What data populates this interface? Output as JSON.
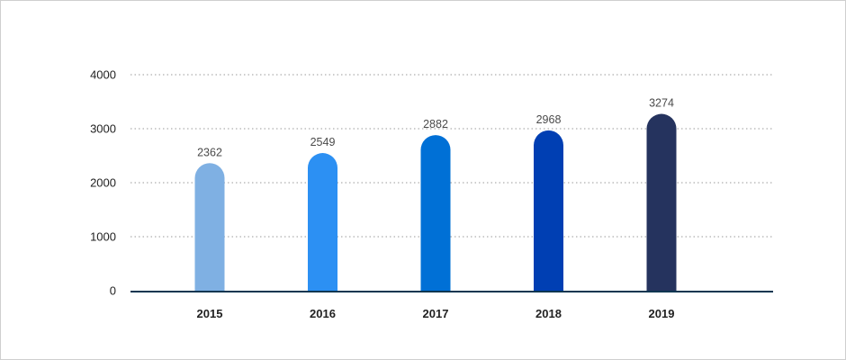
{
  "chart_data": {
    "type": "bar",
    "categories": [
      "2015",
      "2016",
      "2017",
      "2018",
      "2019"
    ],
    "values": [
      2362,
      2549,
      2882,
      2968,
      3274
    ],
    "title": "",
    "xlabel": "",
    "ylabel": "",
    "ylim": [
      0,
      4000
    ],
    "yticks": [
      0,
      1000,
      2000,
      3000,
      4000
    ],
    "grid": true,
    "legend": "none",
    "bar_colors": [
      "#7fb0e3",
      "#2c90f3",
      "#0070d6",
      "#003fb3",
      "#25335e"
    ],
    "gridline_color": "#9a9a9a",
    "axis_color": "#0d3651"
  }
}
